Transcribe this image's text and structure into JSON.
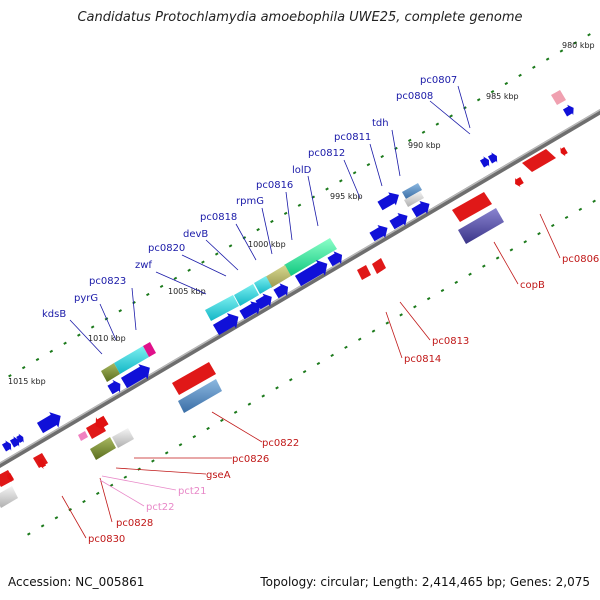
{
  "title": "Candidatus Protochlamydia amoebophila UWE25, complete genome",
  "accession_text": "Accession: NC_005861",
  "topology_text": "Topology: circular; Length: 2,414,465 bp; Genes: 2,075",
  "ticks": [
    {
      "label": "980 kbp",
      "pos": 980
    },
    {
      "label": "985 kbp",
      "pos": 985
    },
    {
      "label": "990 kbp",
      "pos": 990
    },
    {
      "label": "995 kbp",
      "pos": 995
    },
    {
      "label": "1000 kbp",
      "pos": 1000
    },
    {
      "label": "1005 kbp",
      "pos": 1005
    },
    {
      "label": "1010 kbp",
      "pos": 1010
    },
    {
      "label": "1015 kbp",
      "pos": 1015
    }
  ],
  "top_labels": [
    "pc0807",
    "pc0808",
    "tdh",
    "pc0811",
    "pc0812",
    "lolD",
    "pc0816",
    "rpmG",
    "pc0818",
    "devB",
    "pc0820",
    "zwf",
    "pc0823",
    "pyrG",
    "kdsB"
  ],
  "bottom_labels": [
    "pc0806",
    "copB",
    "pc0813",
    "pc0814",
    "pc0822",
    "pc0826",
    "gseA",
    "pc0828",
    "pc0830"
  ],
  "pink_labels": [
    "pct21",
    "pct22"
  ],
  "colors": {
    "backbone": "#7a7a7a",
    "forward_gene": "#1010d8",
    "reverse_gene": "#e01010",
    "tick": "#1c7a1c",
    "top_label": "#1a1aa8",
    "bottom_label": "#c01818",
    "trna_label": "#e888c8"
  }
}
